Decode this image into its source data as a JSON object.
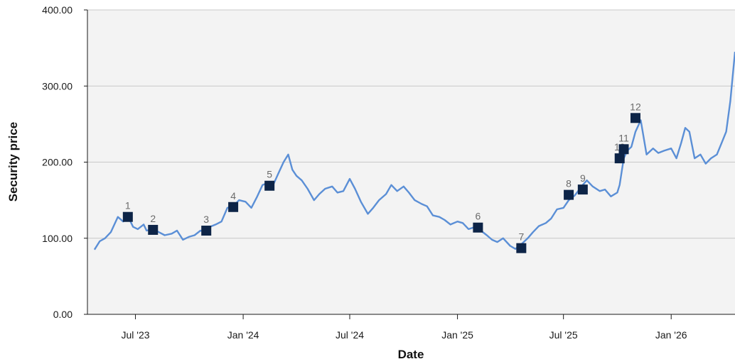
{
  "chart_data": {
    "type": "line",
    "title": "",
    "xlabel": "Date",
    "ylabel": "Security price",
    "x_type": "date",
    "xlim": [
      "2023-04-10",
      "2026-04-20"
    ],
    "ylim": [
      0,
      400
    ],
    "y_ticks": [
      "0.00",
      "100.00",
      "200.00",
      "300.00",
      "400.00"
    ],
    "x_ticks": [
      {
        "date": "2023-07-01",
        "label": "Jul '23"
      },
      {
        "date": "2024-01-01",
        "label": "Jan '24"
      },
      {
        "date": "2024-07-01",
        "label": "Jul '24"
      },
      {
        "date": "2025-01-01",
        "label": "Jan '25"
      },
      {
        "date": "2025-07-01",
        "label": "Jul '25"
      },
      {
        "date": "2026-01-01",
        "label": "Jan '26"
      }
    ],
    "grid": "horizontal",
    "colors": {
      "line": "#5b8fd6",
      "marker": "#0d2447",
      "plot_background": "#f3f3f3",
      "grid": "#c8c8c8"
    },
    "series": [
      {
        "x": [
          "2023-04-22",
          "2023-05-01",
          "2023-05-10",
          "2023-05-20",
          "2023-06-01",
          "2023-06-10",
          "2023-06-20",
          "2023-06-27",
          "2023-07-05",
          "2023-07-15",
          "2023-07-20",
          "2023-07-31",
          "2023-08-10",
          "2023-08-20",
          "2023-09-01",
          "2023-09-10",
          "2023-09-20",
          "2023-10-01",
          "2023-10-10",
          "2023-10-20",
          "2023-10-30",
          "2023-11-05",
          "2023-11-15",
          "2023-11-25",
          "2023-12-05",
          "2023-12-15",
          "2023-12-25",
          "2024-01-05",
          "2024-01-15",
          "2024-01-25",
          "2024-02-03",
          "2024-02-10",
          "2024-02-20",
          "2024-03-01",
          "2024-03-10",
          "2024-03-18",
          "2024-03-25",
          "2024-04-01",
          "2024-04-10",
          "2024-04-20",
          "2024-05-01",
          "2024-05-10",
          "2024-05-20",
          "2024-06-01",
          "2024-06-10",
          "2024-06-20",
          "2024-07-01",
          "2024-07-10",
          "2024-07-20",
          "2024-08-01",
          "2024-08-10",
          "2024-08-20",
          "2024-09-01",
          "2024-09-10",
          "2024-09-20",
          "2024-10-01",
          "2024-10-10",
          "2024-10-20",
          "2024-11-01",
          "2024-11-10",
          "2024-11-20",
          "2024-12-01",
          "2024-12-10",
          "2024-12-20",
          "2025-01-01",
          "2025-01-10",
          "2025-01-20",
          "2025-02-01",
          "2025-02-10",
          "2025-02-20",
          "2025-03-01",
          "2025-03-10",
          "2025-03-20",
          "2025-04-01",
          "2025-04-10",
          "2025-04-20",
          "2025-05-01",
          "2025-05-10",
          "2025-05-20",
          "2025-06-01",
          "2025-06-10",
          "2025-06-20",
          "2025-07-01",
          "2025-07-10",
          "2025-07-20",
          "2025-07-26",
          "2025-08-03",
          "2025-08-10",
          "2025-08-20",
          "2025-09-01",
          "2025-09-10",
          "2025-09-20",
          "2025-10-01",
          "2025-10-05",
          "2025-10-12",
          "2025-10-18",
          "2025-10-25",
          "2025-11-01",
          "2025-11-10",
          "2025-11-20",
          "2025-12-01",
          "2025-12-10",
          "2025-12-20",
          "2026-01-01",
          "2026-01-10",
          "2026-01-18",
          "2026-01-25",
          "2026-02-01",
          "2026-02-10",
          "2026-02-20",
          "2026-03-01",
          "2026-03-10",
          "2026-03-20",
          "2026-03-28",
          "2026-04-05",
          "2026-04-12",
          "2026-04-20"
        ],
        "y": [
          85,
          96,
          100,
          108,
          128,
          122,
          126,
          115,
          112,
          118,
          110,
          112,
          108,
          104,
          106,
          110,
          98,
          102,
          104,
          110,
          108,
          115,
          118,
          122,
          140,
          142,
          150,
          148,
          140,
          155,
          170,
          172,
          168,
          185,
          200,
          210,
          190,
          182,
          176,
          165,
          150,
          158,
          165,
          168,
          160,
          162,
          178,
          165,
          148,
          132,
          140,
          150,
          158,
          170,
          162,
          168,
          160,
          150,
          145,
          142,
          130,
          128,
          124,
          118,
          122,
          120,
          112,
          115,
          110,
          104,
          98,
          95,
          100,
          90,
          86,
          92,
          100,
          108,
          116,
          120,
          126,
          138,
          140,
          150,
          156,
          162,
          170,
          176,
          168,
          162,
          164,
          155,
          160,
          170,
          205,
          215,
          220,
          240,
          255,
          210,
          218,
          212,
          215,
          218,
          205,
          225,
          245,
          240,
          205,
          210,
          198,
          205,
          210,
          225,
          240,
          280,
          345
        ]
      }
    ],
    "markers": [
      {
        "label": "1",
        "x": "2023-06-18",
        "y": 128
      },
      {
        "label": "2",
        "x": "2023-07-31",
        "y": 111
      },
      {
        "label": "3",
        "x": "2023-10-30",
        "y": 110
      },
      {
        "label": "4",
        "x": "2023-12-15",
        "y": 141
      },
      {
        "label": "5",
        "x": "2024-02-15",
        "y": 169
      },
      {
        "label": "6",
        "x": "2025-02-05",
        "y": 114
      },
      {
        "label": "7",
        "x": "2025-04-20",
        "y": 87
      },
      {
        "label": "8",
        "x": "2025-07-10",
        "y": 157
      },
      {
        "label": "9",
        "x": "2025-08-03",
        "y": 164
      },
      {
        "label": "10",
        "x": "2025-10-05",
        "y": 205
      },
      {
        "label": "11",
        "x": "2025-10-12",
        "y": 217
      },
      {
        "label": "12",
        "x": "2025-11-01",
        "y": 258
      }
    ]
  }
}
